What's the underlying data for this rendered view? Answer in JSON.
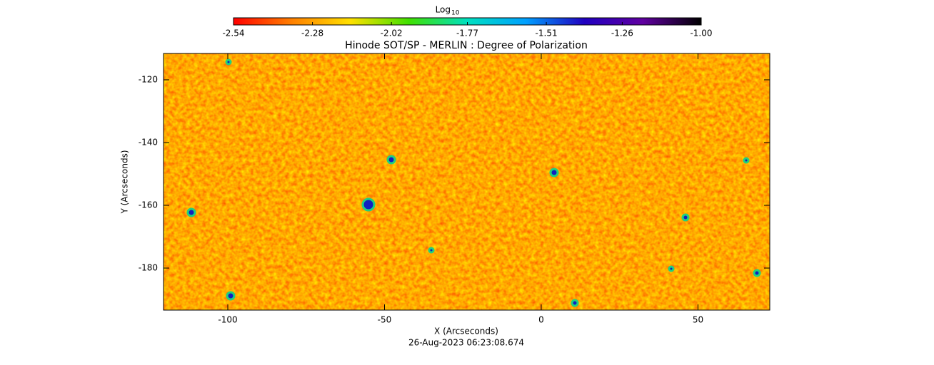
{
  "chart_data": {
    "type": "image",
    "title": "Hinode SOT/SP - MERLIN : Degree of Polarization",
    "x_label": "X (Arcseconds)",
    "y_label": "Y (Arcseconds)",
    "date": "26-Aug-2023 06:23:08.674",
    "xlim": [
      -120.5,
      72.9
    ],
    "ylim": [
      -193.4,
      -111.6
    ],
    "xticks": [
      -100,
      -50,
      0,
      50
    ],
    "yticks": [
      -120,
      -140,
      -160,
      -180
    ],
    "colorbar": {
      "label": "Log",
      "label_subscript": "10",
      "lim": [
        -2.54,
        -1
      ],
      "ticks": [
        -2.54,
        -2.28,
        -2.02,
        -1.77,
        -1.51,
        -1.26,
        {
          "value": -1,
          "label": "-1.00"
        }
      ],
      "colormap": [
        "#ff0000",
        "#ff8000",
        "#ffe000",
        "#40e000",
        "#00e0c0",
        "#00a0ff",
        "#2000c0",
        "#6000a0",
        "#000000"
      ]
    }
  }
}
